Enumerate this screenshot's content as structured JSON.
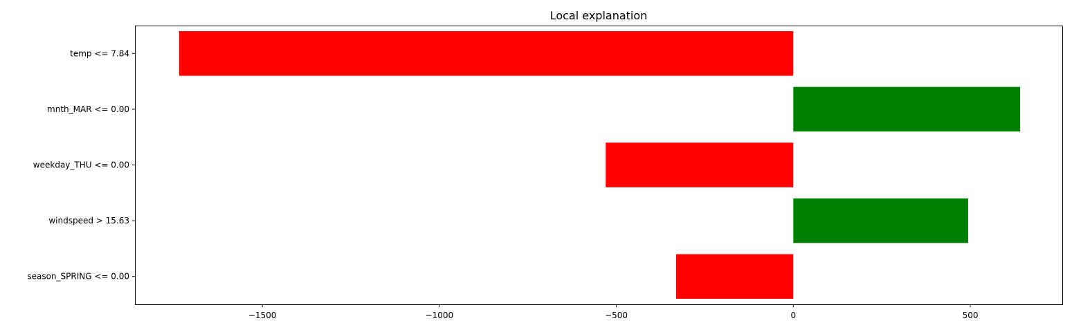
{
  "chart_data": {
    "type": "bar",
    "orientation": "horizontal",
    "title": "Local explanation",
    "xlabel": "",
    "ylabel": "",
    "categories": [
      "temp <= 7.84",
      "mnth_MAR <= 0.00",
      "weekday_THU <= 0.00",
      "windspeed > 15.63",
      "season_SPRING <= 0.00"
    ],
    "values": [
      -1735,
      641,
      -530,
      494,
      -331
    ],
    "xlim": [
      -1860,
      760
    ],
    "xticks": [
      -1500,
      -1000,
      -500,
      0,
      500
    ],
    "xtick_labels": [
      "−1500",
      "−1000",
      "−500",
      "0",
      "500"
    ],
    "grid": false,
    "colors": {
      "positive": "#008000",
      "negative": "#ff0000"
    }
  }
}
